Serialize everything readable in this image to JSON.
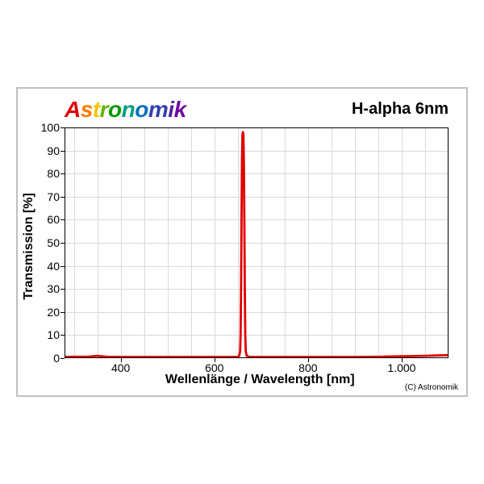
{
  "brand": {
    "text": "Astronomik",
    "letter_colors": [
      "#e00000",
      "#ff7a00",
      "#f5c400",
      "#64b400",
      "#009a00",
      "#00a080",
      "#0070c0",
      "#3040b0",
      "#5020a0",
      "#7000a0"
    ],
    "fontsize": 28
  },
  "product_title": "H-alpha 6nm",
  "copyright": "(C) Astronomik",
  "chart": {
    "type": "line",
    "xlim": [
      280,
      1100
    ],
    "ylim": [
      0,
      100
    ],
    "x_major_ticks": [
      400,
      600,
      800,
      1000
    ],
    "x_major_labels": [
      "400",
      "600",
      "800",
      "1.000"
    ],
    "x_minor_step": 50,
    "y_ticks": [
      0,
      10,
      20,
      30,
      40,
      50,
      60,
      70,
      80,
      90,
      100
    ],
    "y_labels": [
      "0",
      "10",
      "20",
      "30",
      "40",
      "50",
      "60",
      "70",
      "80",
      "90",
      "100"
    ],
    "xlabel": "Wellenlänge / Wavelength [nm]",
    "ylabel": "Transmission [%]",
    "label_fontsize": 16,
    "tick_fontsize": 14,
    "grid_color": "#d9d9d9",
    "axis_color": "#000000",
    "background_color": "#ffffff",
    "line_color": "#e00000",
    "line_width": 2.8,
    "data": [
      [
        280,
        0.5
      ],
      [
        300,
        0.6
      ],
      [
        330,
        0.6
      ],
      [
        350,
        1.0
      ],
      [
        370,
        0.6
      ],
      [
        400,
        0.5
      ],
      [
        450,
        0.5
      ],
      [
        500,
        0.5
      ],
      [
        550,
        0.5
      ],
      [
        600,
        0.5
      ],
      [
        640,
        0.5
      ],
      [
        650,
        0.5
      ],
      [
        653,
        1.0
      ],
      [
        655,
        3
      ],
      [
        656,
        10
      ],
      [
        657,
        30
      ],
      [
        658,
        60
      ],
      [
        659,
        85
      ],
      [
        660,
        97
      ],
      [
        661,
        98
      ],
      [
        662,
        97
      ],
      [
        663,
        85
      ],
      [
        664,
        60
      ],
      [
        665,
        30
      ],
      [
        666,
        10
      ],
      [
        667,
        3
      ],
      [
        669,
        1.0
      ],
      [
        675,
        0.5
      ],
      [
        700,
        0.5
      ],
      [
        750,
        0.5
      ],
      [
        800,
        0.5
      ],
      [
        850,
        0.5
      ],
      [
        900,
        0.5
      ],
      [
        950,
        0.6
      ],
      [
        1000,
        0.8
      ],
      [
        1050,
        1.0
      ],
      [
        1080,
        1.2
      ],
      [
        1100,
        1.3
      ]
    ]
  }
}
